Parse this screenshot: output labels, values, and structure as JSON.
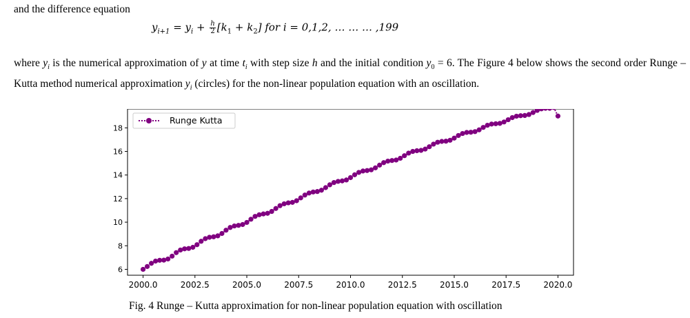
{
  "intro_text": "and the difference equation",
  "equation": {
    "lhs": "y",
    "lhs_sub": "i+1",
    "eq_sign": " = ",
    "y": "y",
    "y_sub": "i",
    "plus": " + ",
    "frac_num": "h",
    "frac_den": "2",
    "bracket_open": "[k",
    "k1_sub": "1",
    "plus2": " + k",
    "k2_sub": "2",
    "bracket_close": "]",
    "for_text": " for i = 0,1,2, … … … ,199"
  },
  "paragraph": {
    "p1": "where ",
    "yi": "y",
    "yi_sub": "i",
    "p2": " is the numerical approximation of ",
    "y": "y",
    "p3": " at time ",
    "t": "t",
    "t_sub": "i",
    "p4": " with step size ",
    "h": "h",
    "p5": " and the initial condition ",
    "y0": "y",
    "y0_sub": "0",
    "p6": " = 6. The Figure 4 below shows the second order Runge – Kutta  method numerical approximation ",
    "yi2": "y",
    "yi2_sub": "i",
    "p7": " (circles) for the non-linear population equation with an oscillation."
  },
  "caption": "Fig. 4 Runge – Kutta approximation for non-linear population equation with oscillation",
  "chart_data": {
    "type": "line",
    "title": "",
    "xlabel": "",
    "ylabel": "",
    "xlim": [
      1999.25,
      2020.75
    ],
    "ylim": [
      5.5,
      19.6
    ],
    "x_ticks": [
      2000.0,
      2002.5,
      2005.0,
      2007.5,
      2010.0,
      2012.5,
      2015.0,
      2017.5,
      2020.0
    ],
    "x_tick_labels": [
      "2000.0",
      "2002.5",
      "2005.0",
      "2007.5",
      "2010.0",
      "2012.5",
      "2015.0",
      "2017.5",
      "2020.0"
    ],
    "y_ticks": [
      6,
      8,
      10,
      12,
      14,
      16,
      18
    ],
    "y_tick_labels": [
      "6",
      "8",
      "10",
      "12",
      "14",
      "16",
      "18"
    ],
    "grid": false,
    "legend_position": "top-left",
    "series": [
      {
        "name": "Runge Kutta",
        "color": "#800080",
        "marker": "circle",
        "linestyle": "dotted",
        "x": [
          2000.0,
          2000.2,
          2000.4,
          2000.6,
          2000.8,
          2001.0,
          2001.2,
          2001.4,
          2001.6,
          2001.8,
          2002.0,
          2002.2,
          2002.4,
          2002.6,
          2002.8,
          2003.0,
          2003.2,
          2003.4,
          2003.6,
          2003.8,
          2004.0,
          2004.2,
          2004.4,
          2004.6,
          2004.8,
          2005.0,
          2005.2,
          2005.4,
          2005.6,
          2005.8,
          2006.0,
          2006.2,
          2006.4,
          2006.6,
          2006.8,
          2007.0,
          2007.2,
          2007.4,
          2007.6,
          2007.8,
          2008.0,
          2008.2,
          2008.4,
          2008.6,
          2008.8,
          2009.0,
          2009.2,
          2009.4,
          2009.6,
          2009.8,
          2010.0,
          2010.2,
          2010.4,
          2010.6,
          2010.8,
          2011.0,
          2011.2,
          2011.4,
          2011.6,
          2011.8,
          2012.0,
          2012.2,
          2012.4,
          2012.6,
          2012.8,
          2013.0,
          2013.2,
          2013.4,
          2013.6,
          2013.8,
          2014.0,
          2014.2,
          2014.4,
          2014.6,
          2014.8,
          2015.0,
          2015.2,
          2015.4,
          2015.6,
          2015.8,
          2016.0,
          2016.2,
          2016.4,
          2016.6,
          2016.8,
          2017.0,
          2017.2,
          2017.4,
          2017.6,
          2017.8,
          2018.0,
          2018.2,
          2018.4,
          2018.6,
          2018.8,
          2019.0,
          2019.2,
          2019.4,
          2019.6,
          2019.8,
          2020.0
        ],
        "y": [
          6.0,
          6.24,
          6.51,
          6.7,
          6.77,
          6.78,
          6.88,
          7.12,
          7.42,
          7.64,
          7.74,
          7.77,
          7.87,
          8.09,
          8.38,
          8.6,
          8.72,
          8.76,
          8.84,
          9.04,
          9.32,
          9.55,
          9.68,
          9.73,
          9.8,
          9.98,
          10.25,
          10.49,
          10.63,
          10.7,
          10.75,
          10.91,
          11.16,
          11.4,
          11.56,
          11.64,
          11.68,
          11.82,
          12.06,
          12.3,
          12.47,
          12.56,
          12.6,
          12.71,
          12.93,
          13.17,
          13.36,
          13.46,
          13.5,
          13.58,
          13.78,
          14.02,
          14.22,
          14.34,
          14.38,
          14.44,
          14.61,
          14.84,
          15.05,
          15.18,
          15.23,
          15.27,
          15.42,
          15.64,
          15.86,
          16.0,
          16.06,
          16.09,
          16.2,
          16.4,
          16.62,
          16.78,
          16.85,
          16.87,
          16.95,
          17.13,
          17.35,
          17.52,
          17.61,
          17.63,
          17.68,
          17.83,
          18.04,
          18.22,
          18.32,
          18.35,
          18.38,
          18.5,
          18.69,
          18.87,
          18.99,
          19.03,
          19.05,
          19.13,
          19.3,
          19.48,
          19.61,
          19.66,
          19.66,
          19.73,
          19.0
        ]
      }
    ]
  }
}
